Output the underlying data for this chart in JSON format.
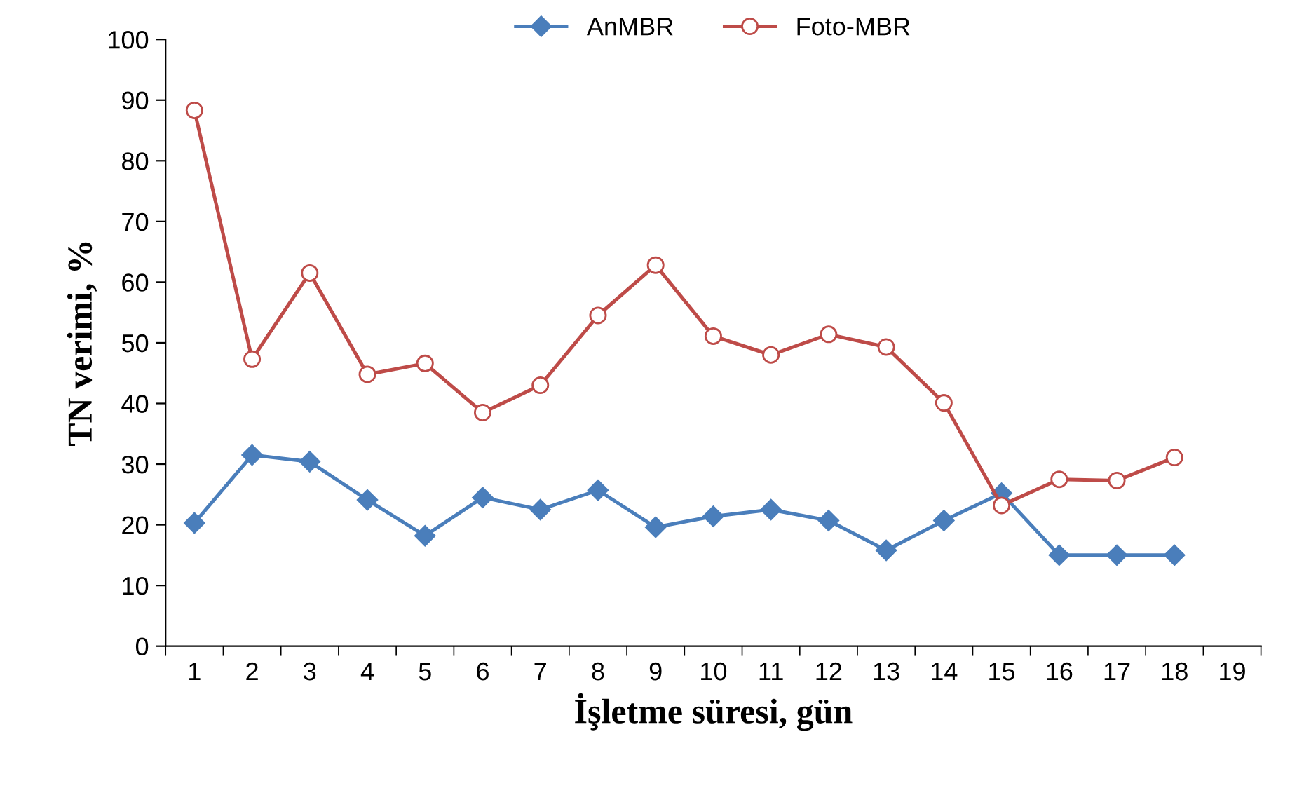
{
  "chart_data": {
    "type": "line",
    "xlabel": "İşletme süresi, gün",
    "ylabel": "TN verimi, %",
    "categories": [
      "1",
      "2",
      "3",
      "4",
      "5",
      "6",
      "7",
      "8",
      "9",
      "10",
      "11",
      "12",
      "13",
      "14",
      "15",
      "16",
      "17",
      "18",
      "19"
    ],
    "series": [
      {
        "name": "AnMBR",
        "color": "#4a7ebb",
        "marker": "diamond",
        "values": [
          20.3,
          31.5,
          30.4,
          24.1,
          18.2,
          24.5,
          22.5,
          25.7,
          19.6,
          21.4,
          22.5,
          20.7,
          15.8,
          20.7,
          25.2,
          15,
          15,
          15,
          null
        ]
      },
      {
        "name": "Foto-MBR",
        "color": "#be4b48",
        "marker": "circle",
        "values": [
          88.3,
          47.3,
          61.5,
          44.8,
          46.6,
          38.5,
          43,
          54.5,
          62.8,
          51.1,
          48,
          51.4,
          49.3,
          40.1,
          23.2,
          27.5,
          27.3,
          31.1,
          null
        ]
      }
    ],
    "ylim": [
      0,
      100
    ],
    "yticks": [
      0,
      10,
      20,
      30,
      40,
      50,
      60,
      70,
      80,
      90,
      100
    ],
    "grid": false,
    "legend": "top",
    "line_style": "solid"
  }
}
